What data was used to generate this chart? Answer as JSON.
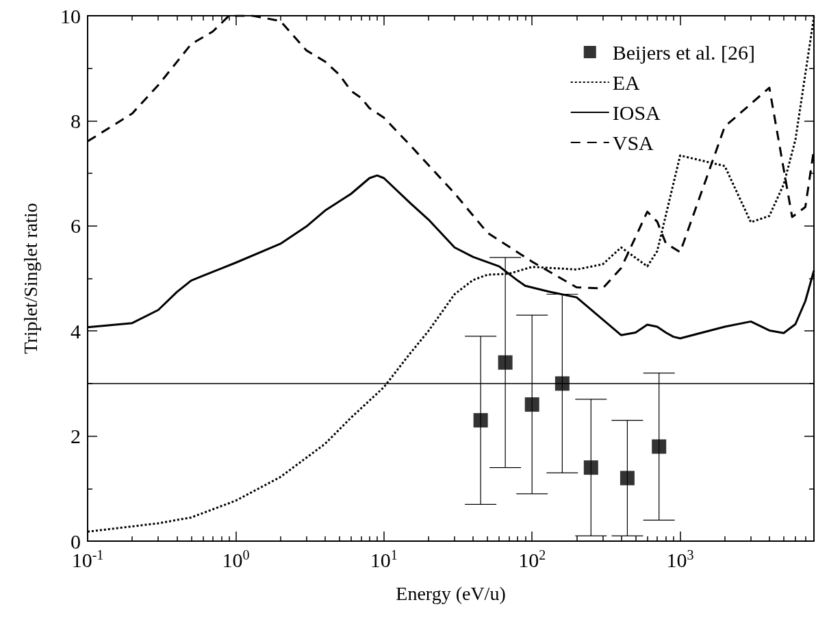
{
  "chart_data": {
    "type": "line",
    "xlabel": "Energy (eV/u)",
    "ylabel": "Triplet/Singlet ratio",
    "log": "x",
    "legend": "top right",
    "xlim": [
      0.1,
      8000
    ],
    "ylim": [
      0,
      10
    ],
    "xticks": [
      {
        "value": 0.1,
        "label": "10$^{-1}$"
      },
      {
        "value": 0.2,
        "label": null
      },
      {
        "value": 0.3,
        "label": null
      },
      {
        "value": 0.4,
        "label": null
      },
      {
        "value": 0.5,
        "label": null
      },
      {
        "value": 0.6,
        "label": null
      },
      {
        "value": 0.7,
        "label": null
      },
      {
        "value": 0.8,
        "label": null
      },
      {
        "value": 0.9,
        "label": null
      },
      {
        "value": 1,
        "label": "10$^{0}$"
      },
      {
        "value": 2,
        "label": null
      },
      {
        "value": 3,
        "label": null
      },
      {
        "value": 4,
        "label": null
      },
      {
        "value": 5,
        "label": null
      },
      {
        "value": 6,
        "label": null
      },
      {
        "value": 7,
        "label": null
      },
      {
        "value": 8,
        "label": null
      },
      {
        "value": 9,
        "label": null
      },
      {
        "value": 10,
        "label": "10$^{1}$"
      },
      {
        "value": 20,
        "label": null
      },
      {
        "value": 30,
        "label": null
      },
      {
        "value": 40,
        "label": null
      },
      {
        "value": 50,
        "label": null
      },
      {
        "value": 60,
        "label": null
      },
      {
        "value": 70,
        "label": null
      },
      {
        "value": 80,
        "label": null
      },
      {
        "value": 90,
        "label": null
      },
      {
        "value": 100,
        "label": "10$^{2}$"
      },
      {
        "value": 200,
        "label": null
      },
      {
        "value": 300,
        "label": null
      },
      {
        "value": 400,
        "label": null
      },
      {
        "value": 500,
        "label": null
      },
      {
        "value": 600,
        "label": null
      },
      {
        "value": 700,
        "label": null
      },
      {
        "value": 800,
        "label": null
      },
      {
        "value": 900,
        "label": null
      },
      {
        "value": 1000,
        "label": "10$^{3}$"
      },
      {
        "value": 2000,
        "label": null
      },
      {
        "value": 3000,
        "label": null
      },
      {
        "value": 4000,
        "label": null
      },
      {
        "value": 5000,
        "label": null
      },
      {
        "value": 6000,
        "label": null
      },
      {
        "value": 7000,
        "label": null
      },
      {
        "value": 8000,
        "label": null
      }
    ],
    "yticks": [
      0,
      {
        "value": 1,
        "label": null
      },
      2,
      {
        "value": 3,
        "label": null
      },
      4,
      {
        "value": 5,
        "label": null
      },
      6,
      {
        "value": 7,
        "label": null
      },
      8,
      {
        "value": 9,
        "label": null
      },
      10
    ],
    "ref_lines": [
      {
        "axis": "y",
        "value": 3,
        "color": "#000000"
      }
    ],
    "series": [
      {
        "name": "Beijers et al. [26]",
        "type": "scatter",
        "marker": "square",
        "color": "#000000",
        "x": [
          45,
          66,
          100,
          160,
          250,
          440,
          720
        ],
        "values": [
          2.3,
          3.4,
          2.6,
          3.0,
          1.4,
          1.2,
          1.8
        ],
        "errors": [
          [
            0.7,
            3.9
          ],
          [
            1.4,
            5.4
          ],
          [
            0.9,
            4.3
          ],
          [
            1.3,
            4.7
          ],
          [
            0.1,
            2.7
          ],
          [
            0.1,
            2.3
          ],
          [
            0.4,
            3.2
          ]
        ]
      },
      {
        "name": "EA",
        "type": "line",
        "line_style": "dotted",
        "color": "#000000",
        "x": [
          0.1,
          0.2,
          0.3,
          0.5,
          1,
          2,
          4,
          6,
          10,
          15,
          20,
          30,
          40,
          50,
          70,
          100,
          200,
          300,
          400,
          600,
          700,
          1000,
          2000,
          3000,
          4000,
          5000,
          6000,
          8000
        ],
        "values": [
          0.18,
          0.28,
          0.34,
          0.45,
          0.77,
          1.22,
          1.85,
          2.35,
          2.93,
          3.57,
          4.0,
          4.7,
          4.97,
          5.07,
          5.09,
          5.22,
          5.17,
          5.27,
          5.59,
          5.23,
          5.52,
          7.34,
          7.14,
          6.07,
          6.19,
          6.79,
          7.64,
          9.98
        ]
      },
      {
        "name": "IOSA",
        "type": "line",
        "line_style": "solid",
        "color": "#000000",
        "x": [
          0.1,
          0.2,
          0.3,
          0.4,
          0.5,
          0.6,
          0.8,
          1,
          2,
          3,
          4,
          6,
          8,
          9,
          10,
          15,
          20,
          30,
          40,
          60,
          80,
          90,
          130,
          200,
          400,
          500,
          600,
          700,
          800,
          900,
          1000,
          2000,
          3000,
          4000,
          5000,
          6000,
          7000,
          8000
        ],
        "values": [
          4.07,
          4.15,
          4.4,
          4.74,
          4.96,
          5.05,
          5.19,
          5.3,
          5.66,
          5.99,
          6.29,
          6.61,
          6.91,
          6.96,
          6.91,
          6.44,
          6.12,
          5.59,
          5.41,
          5.23,
          4.96,
          4.86,
          4.75,
          4.64,
          3.92,
          3.97,
          4.12,
          4.08,
          3.97,
          3.89,
          3.86,
          4.08,
          4.18,
          4.01,
          3.96,
          4.13,
          4.57,
          5.15
        ]
      },
      {
        "name": "VSA",
        "type": "line",
        "line_style": "dashed",
        "color": "#000000",
        "x": [
          0.1,
          0.2,
          0.3,
          0.5,
          0.7,
          0.9,
          1.3,
          2,
          3,
          4,
          5,
          6,
          7,
          8,
          10,
          15,
          30,
          50,
          100,
          200,
          300,
          400,
          600,
          700,
          800,
          1000,
          2000,
          4000,
          5700,
          7000,
          8000
        ],
        "values": [
          7.61,
          8.14,
          8.68,
          9.46,
          9.7,
          10.0,
          10.0,
          9.9,
          9.34,
          9.13,
          8.88,
          8.57,
          8.44,
          8.24,
          8.06,
          7.54,
          6.62,
          5.87,
          5.32,
          4.83,
          4.81,
          5.2,
          6.27,
          6.08,
          5.67,
          5.5,
          7.89,
          8.63,
          6.17,
          6.36,
          7.46
        ]
      }
    ]
  }
}
